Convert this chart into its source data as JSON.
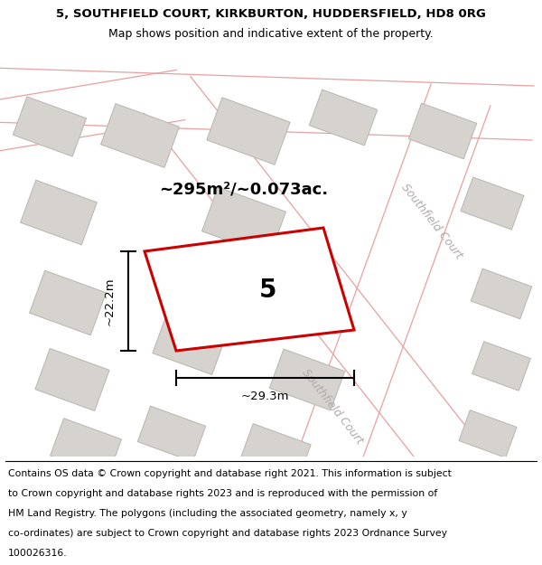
{
  "title_line1": "5, SOUTHFIELD COURT, KIRKBURTON, HUDDERSFIELD, HD8 0RG",
  "title_line2": "Map shows position and indicative extent of the property.",
  "area_label": "~295m²/~0.073ac.",
  "plot_number": "5",
  "dim_width": "~29.3m",
  "dim_height": "~22.2m",
  "road_label_right": "Southfield Court",
  "road_label_bottom": "Southfield Court",
  "map_bg": "#f2f0ee",
  "building_fill": "#d6d3cf",
  "building_stroke": "#b8b4b0",
  "plot_fill": "#ffffff",
  "plot_stroke": "#cc0000",
  "road_fill": "#ffffff",
  "road_edge_color": "#e8a0a0",
  "title_fontsize": 9.5,
  "footer_fontsize": 7.8,
  "footer_lines": [
    "Contains OS data © Crown copyright and database right 2021. This information is subject",
    "to Crown copyright and database rights 2023 and is reproduced with the permission of",
    "HM Land Registry. The polygons (including the associated geometry, namely x, y",
    "co-ordinates) are subject to Crown copyright and database rights 2023 Ordnance Survey",
    "100026316."
  ]
}
